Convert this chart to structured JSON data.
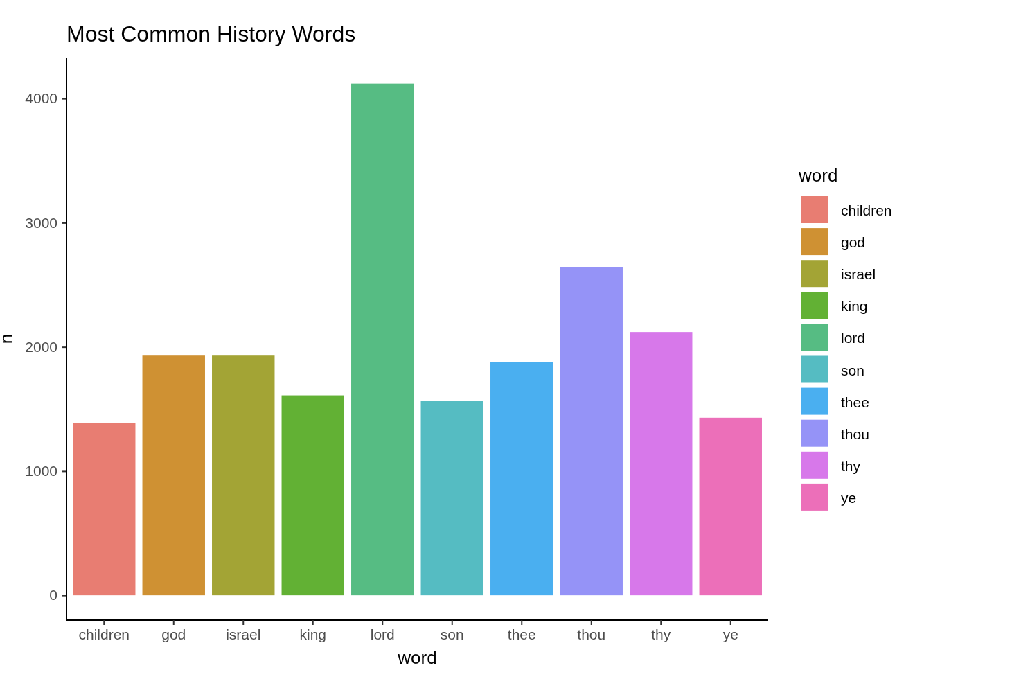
{
  "chart_data": {
    "type": "bar",
    "title": "Most Common History Words",
    "xlabel": "word",
    "ylabel": "n",
    "legend_title": "word",
    "categories": [
      "children",
      "god",
      "israel",
      "king",
      "lord",
      "son",
      "thee",
      "thou",
      "thy",
      "ye"
    ],
    "series": [
      {
        "name": "children",
        "color": "#e87d72",
        "values": [
          1390,
          null,
          null,
          null,
          null,
          null,
          null,
          null,
          null,
          null
        ]
      },
      {
        "name": "god",
        "color": "#cf9133",
        "values": [
          null,
          1930,
          null,
          null,
          null,
          null,
          null,
          null,
          null,
          null
        ]
      },
      {
        "name": "israel",
        "color": "#a3a435",
        "values": [
          null,
          null,
          1930,
          null,
          null,
          null,
          null,
          null,
          null,
          null
        ]
      },
      {
        "name": "king",
        "color": "#62b134",
        "values": [
          null,
          null,
          null,
          1610,
          null,
          null,
          null,
          null,
          null,
          null
        ]
      },
      {
        "name": "lord",
        "color": "#56bc83",
        "values": [
          null,
          null,
          null,
          null,
          4120,
          null,
          null,
          null,
          null,
          null
        ]
      },
      {
        "name": "son",
        "color": "#55bcc2",
        "values": [
          null,
          null,
          null,
          null,
          null,
          1565,
          null,
          null,
          null,
          null
        ]
      },
      {
        "name": "thee",
        "color": "#4aaff0",
        "values": [
          null,
          null,
          null,
          null,
          null,
          null,
          1880,
          null,
          null,
          null
        ]
      },
      {
        "name": "thou",
        "color": "#9593f7",
        "values": [
          null,
          null,
          null,
          null,
          null,
          null,
          null,
          2640,
          null,
          null
        ]
      },
      {
        "name": "thy",
        "color": "#d778ea",
        "values": [
          null,
          null,
          null,
          null,
          null,
          null,
          null,
          null,
          2120,
          null
        ]
      },
      {
        "name": "ye",
        "color": "#ec6fb9",
        "values": [
          null,
          null,
          null,
          null,
          null,
          null,
          null,
          null,
          null,
          1430
        ]
      }
    ],
    "stacked": true,
    "ylim": [
      -200,
      4330
    ],
    "yticks": [
      0,
      1000,
      2000,
      3000,
      4000
    ],
    "legend": "right"
  }
}
